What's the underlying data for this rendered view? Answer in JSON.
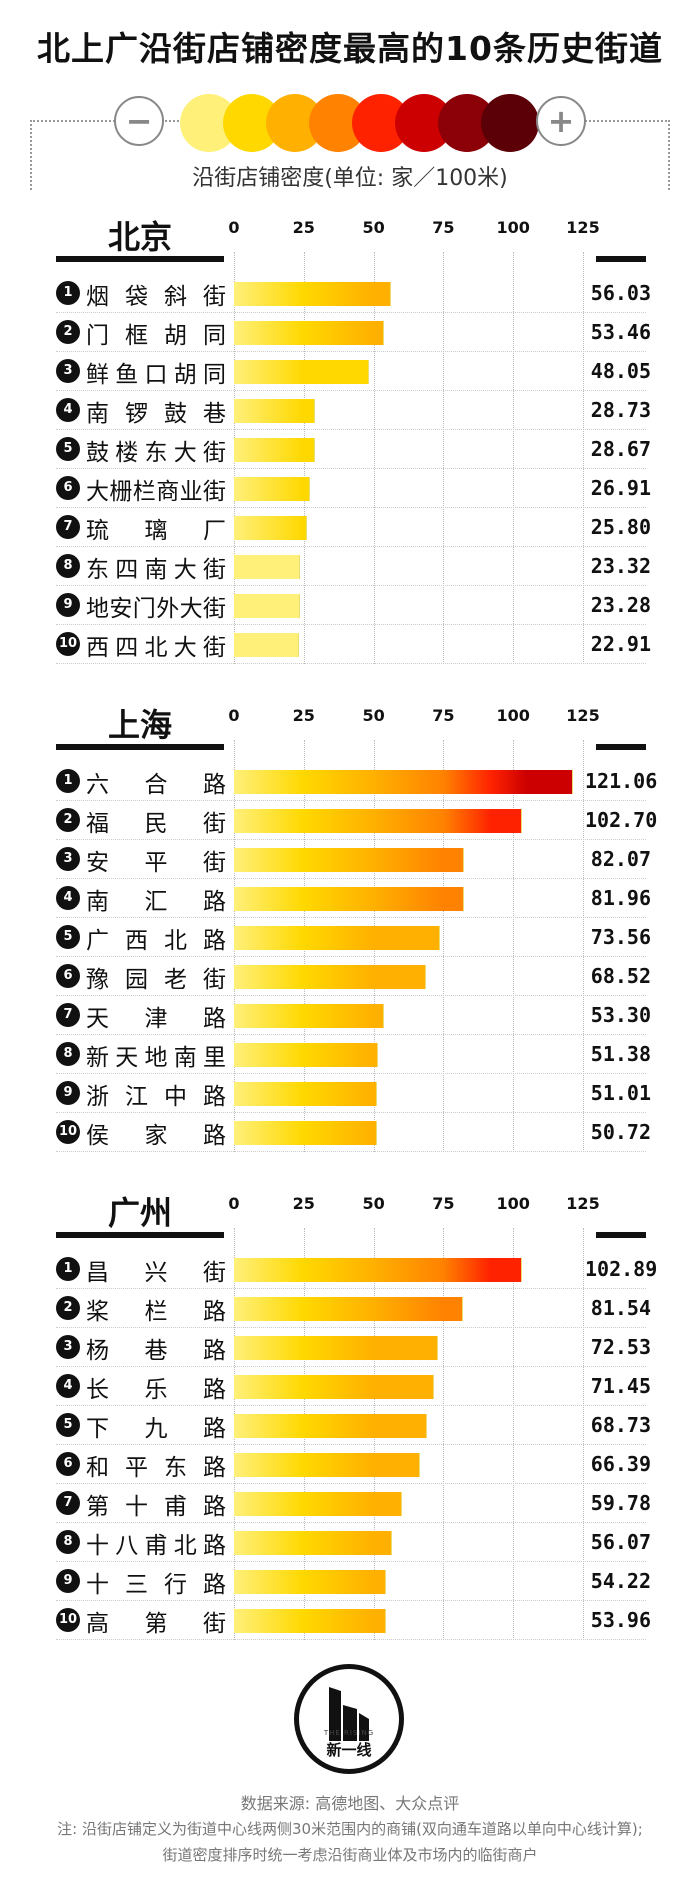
{
  "title": "北上广沿街店铺密度最高的10条历史街道",
  "legend": {
    "minus": "−",
    "plus": "+",
    "colors": [
      "#fff07a",
      "#ffd800",
      "#ffb000",
      "#ff8200",
      "#ff2200",
      "#cc0000",
      "#8c0008",
      "#5a0006"
    ],
    "label": "沿街店铺密度(单位: 家／100米)"
  },
  "logo": {
    "text": "新一线",
    "subtext": "THE RISING"
  },
  "footer": {
    "source": "数据来源: 高德地图、大众点评",
    "note1": "注: 沿街店铺定义为街道中心线两侧30米范围内的商铺(双向通车道路以单向中心线计算);",
    "note2": "街道密度排序时统一考虑沿街商业体及市场内的临街商户"
  },
  "chart_data": [
    {
      "type": "bar",
      "title": "北京",
      "ticks": [
        0,
        25,
        50,
        75,
        100,
        125
      ],
      "xlim": [
        0,
        125
      ],
      "categories": [
        "烟袋斜街",
        "门框胡同",
        "鲜鱼口胡同",
        "南锣鼓巷",
        "鼓楼东大街",
        "大栅栏商业街",
        "琉璃厂",
        "东四南大街",
        "地安门外大街",
        "西四北大街"
      ],
      "ranks": [
        "1",
        "2",
        "3",
        "4",
        "5",
        "6",
        "7",
        "8",
        "9",
        "10"
      ],
      "values": [
        56.03,
        53.46,
        48.05,
        28.73,
        28.67,
        26.91,
        25.8,
        23.32,
        23.28,
        22.91
      ],
      "labels": [
        "56.03",
        "53.46",
        "48.05",
        "28.73",
        "28.67",
        "26.91",
        "25.80",
        "23.32",
        "23.28",
        "22.91"
      ]
    },
    {
      "type": "bar",
      "title": "上海",
      "ticks": [
        0,
        25,
        50,
        75,
        100,
        125
      ],
      "xlim": [
        0,
        125
      ],
      "categories": [
        "六合路",
        "福民街",
        "安平街",
        "南汇路",
        "广西北路",
        "豫园老街",
        "天津路",
        "新天地南里",
        "浙江中路",
        "侯家路"
      ],
      "ranks": [
        "1",
        "2",
        "3",
        "4",
        "5",
        "6",
        "7",
        "8",
        "9",
        "10"
      ],
      "values": [
        121.06,
        102.7,
        82.07,
        81.96,
        73.56,
        68.52,
        53.3,
        51.38,
        51.01,
        50.72
      ],
      "labels": [
        "121.06",
        "102.70",
        "82.07",
        "81.96",
        "73.56",
        "68.52",
        "53.30",
        "51.38",
        "51.01",
        "50.72"
      ]
    },
    {
      "type": "bar",
      "title": "广州",
      "ticks": [
        0,
        25,
        50,
        75,
        100,
        125
      ],
      "xlim": [
        0,
        125
      ],
      "categories": [
        "昌兴街",
        "桨栏路",
        "杨巷路",
        "长乐路",
        "下九路",
        "和平东路",
        "第十甫路",
        "十八甫北路",
        "十三行路",
        "高第街"
      ],
      "ranks": [
        "1",
        "2",
        "3",
        "4",
        "5",
        "6",
        "7",
        "8",
        "9",
        "10"
      ],
      "values": [
        102.89,
        81.54,
        72.53,
        71.45,
        68.73,
        66.39,
        59.78,
        56.07,
        54.22,
        53.96
      ],
      "labels": [
        "102.89",
        "81.54",
        "72.53",
        "71.45",
        "68.73",
        "66.39",
        "59.78",
        "56.07",
        "54.22",
        "53.96"
      ]
    }
  ]
}
